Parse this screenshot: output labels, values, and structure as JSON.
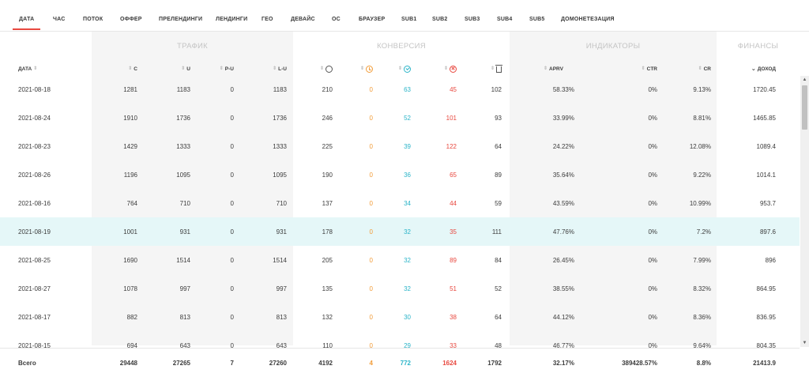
{
  "tabs": [
    {
      "label": "ДАТА",
      "active": true
    },
    {
      "label": "ЧАС"
    },
    {
      "label": "ПОТОК"
    },
    {
      "label": "ОФФЕР"
    },
    {
      "label": "ПРЕЛЕНДИНГИ"
    },
    {
      "label": "ЛЕНДИНГИ"
    },
    {
      "label": "ГЕО"
    },
    {
      "label": "ДЕВАЙС"
    },
    {
      "label": "ОС"
    },
    {
      "label": "БРАУЗЕР"
    },
    {
      "label": "SUB1"
    },
    {
      "label": "SUB2"
    },
    {
      "label": "SUB3"
    },
    {
      "label": "SUB4"
    },
    {
      "label": "SUB5"
    },
    {
      "label": "ДОМОНЕТЕЗАЦИЯ"
    }
  ],
  "groups": {
    "traffic": "ТРАФИК",
    "conversion": "КОНВЕРСИЯ",
    "indicators": "ИНДИКАТОРЫ",
    "finance": "ФИНАНСЫ"
  },
  "columns": {
    "date": "ДАТА",
    "c": "C",
    "u": "U",
    "pu": "P-U",
    "lu": "L-U",
    "aprv": "APRV",
    "ctr": "CTR",
    "cr": "CR",
    "income": "ДОХОД"
  },
  "icons": {
    "conv_total": "circle-outline-icon",
    "conv_hold": "clock-orange-icon",
    "conv_approved": "check-circle-teal-icon",
    "conv_rejected": "x-circle-red-icon",
    "conv_trash": "trash-icon"
  },
  "colors": {
    "accent": "#e8483f",
    "hold": "#f29c38",
    "approved": "#2bb4c8",
    "rejected": "#e8483f",
    "highlight_row": "#e5f7f8"
  },
  "rows": [
    {
      "date": "2021-08-18",
      "c": "1281",
      "u": "1183",
      "pu": "0",
      "lu": "1183",
      "total": "210",
      "hold": "0",
      "approved": "63",
      "rejected": "45",
      "trash": "102",
      "aprv": "58.33%",
      "ctr": "0%",
      "cr": "9.13%",
      "income": "1720.45"
    },
    {
      "date": "2021-08-24",
      "c": "1910",
      "u": "1736",
      "pu": "0",
      "lu": "1736",
      "total": "246",
      "hold": "0",
      "approved": "52",
      "rejected": "101",
      "trash": "93",
      "aprv": "33.99%",
      "ctr": "0%",
      "cr": "8.81%",
      "income": "1465.85"
    },
    {
      "date": "2021-08-23",
      "c": "1429",
      "u": "1333",
      "pu": "0",
      "lu": "1333",
      "total": "225",
      "hold": "0",
      "approved": "39",
      "rejected": "122",
      "trash": "64",
      "aprv": "24.22%",
      "ctr": "0%",
      "cr": "12.08%",
      "income": "1089.4"
    },
    {
      "date": "2021-08-26",
      "c": "1196",
      "u": "1095",
      "pu": "0",
      "lu": "1095",
      "total": "190",
      "hold": "0",
      "approved": "36",
      "rejected": "65",
      "trash": "89",
      "aprv": "35.64%",
      "ctr": "0%",
      "cr": "9.22%",
      "income": "1014.1"
    },
    {
      "date": "2021-08-16",
      "c": "764",
      "u": "710",
      "pu": "0",
      "lu": "710",
      "total": "137",
      "hold": "0",
      "approved": "34",
      "rejected": "44",
      "trash": "59",
      "aprv": "43.59%",
      "ctr": "0%",
      "cr": "10.99%",
      "income": "953.7"
    },
    {
      "date": "2021-08-19",
      "c": "1001",
      "u": "931",
      "pu": "0",
      "lu": "931",
      "total": "178",
      "hold": "0",
      "approved": "32",
      "rejected": "35",
      "trash": "111",
      "aprv": "47.76%",
      "ctr": "0%",
      "cr": "7.2%",
      "income": "897.6",
      "highlight": true
    },
    {
      "date": "2021-08-25",
      "c": "1690",
      "u": "1514",
      "pu": "0",
      "lu": "1514",
      "total": "205",
      "hold": "0",
      "approved": "32",
      "rejected": "89",
      "trash": "84",
      "aprv": "26.45%",
      "ctr": "0%",
      "cr": "7.99%",
      "income": "896"
    },
    {
      "date": "2021-08-27",
      "c": "1078",
      "u": "997",
      "pu": "0",
      "lu": "997",
      "total": "135",
      "hold": "0",
      "approved": "32",
      "rejected": "51",
      "trash": "52",
      "aprv": "38.55%",
      "ctr": "0%",
      "cr": "8.32%",
      "income": "864.95"
    },
    {
      "date": "2021-08-17",
      "c": "882",
      "u": "813",
      "pu": "0",
      "lu": "813",
      "total": "132",
      "hold": "0",
      "approved": "30",
      "rejected": "38",
      "trash": "64",
      "aprv": "44.12%",
      "ctr": "0%",
      "cr": "8.36%",
      "income": "836.95"
    },
    {
      "date": "2021-08-15",
      "c": "694",
      "u": "643",
      "pu": "0",
      "lu": "643",
      "total": "110",
      "hold": "0",
      "approved": "29",
      "rejected": "33",
      "trash": "48",
      "aprv": "46.77%",
      "ctr": "0%",
      "cr": "9.64%",
      "income": "804.35"
    }
  ],
  "totals": {
    "label": "Всего",
    "c": "29448",
    "u": "27265",
    "pu": "7",
    "lu": "27260",
    "total": "4192",
    "hold": "4",
    "approved": "772",
    "rejected": "1624",
    "trash": "1792",
    "aprv": "32.17%",
    "ctr": "389428.57%",
    "cr": "8.8%",
    "income": "21413.9"
  },
  "scrollbar": {
    "up": "▲",
    "down": "▼"
  }
}
